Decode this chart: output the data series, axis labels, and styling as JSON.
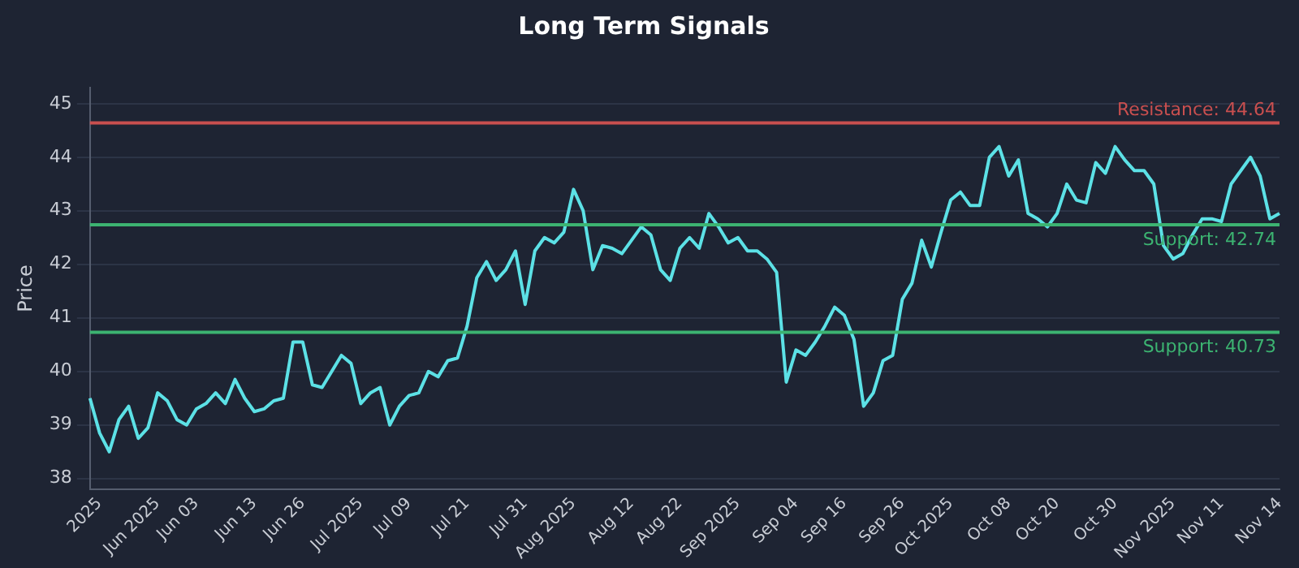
{
  "chart_data": {
    "type": "line",
    "title": "Long Term Signals",
    "ylabel": "Price",
    "categories": [
      null,
      "2025",
      null,
      null,
      null,
      null,
      null,
      "Jun 2025",
      null,
      null,
      null,
      "Jun 03",
      null,
      null,
      null,
      null,
      null,
      "Jun 13",
      null,
      null,
      null,
      null,
      "Jun 26",
      null,
      null,
      null,
      null,
      null,
      "Jul 2025",
      null,
      null,
      null,
      null,
      "Jul 09",
      null,
      null,
      null,
      null,
      null,
      "Jul 21",
      null,
      null,
      null,
      null,
      null,
      "Jul 31",
      null,
      null,
      null,
      null,
      "Aug 2025",
      null,
      null,
      null,
      null,
      null,
      "Aug 12",
      null,
      null,
      null,
      null,
      "Aug 22",
      null,
      null,
      null,
      null,
      null,
      "Sep 2025",
      null,
      null,
      null,
      null,
      null,
      "Sep 04",
      null,
      null,
      null,
      null,
      "Sep 16",
      null,
      null,
      null,
      null,
      null,
      "Sep 26",
      null,
      null,
      null,
      null,
      "Oct 2025",
      null,
      null,
      null,
      null,
      null,
      "Oct 08",
      null,
      null,
      null,
      null,
      "Oct 20",
      null,
      null,
      null,
      null,
      null,
      "Oct 30",
      null,
      null,
      null,
      null,
      null,
      "Nov 2025",
      null,
      null,
      null,
      null,
      "Nov 11",
      null,
      null,
      null,
      null,
      null,
      "Nov 14"
    ],
    "series": [
      {
        "color": "#5ce1e6",
        "values": [
          39.5,
          38.85,
          38.5,
          39.1,
          39.35,
          38.75,
          38.95,
          39.6,
          39.45,
          39.1,
          39.0,
          39.3,
          39.4,
          39.6,
          39.4,
          39.85,
          39.5,
          39.25,
          39.3,
          39.45,
          39.5,
          40.55,
          40.55,
          39.75,
          39.7,
          40.0,
          40.3,
          40.15,
          39.4,
          39.6,
          39.7,
          39.0,
          39.35,
          39.55,
          39.6,
          40.0,
          39.9,
          40.2,
          40.25,
          40.85,
          41.75,
          42.05,
          41.7,
          41.9,
          42.25,
          41.25,
          42.25,
          42.5,
          42.4,
          42.6,
          43.4,
          43.0,
          41.9,
          42.35,
          42.3,
          42.2,
          42.45,
          42.7,
          42.55,
          41.9,
          41.7,
          42.3,
          42.5,
          42.3,
          42.95,
          42.7,
          42.4,
          42.5,
          42.25,
          42.25,
          42.1,
          41.85,
          39.8,
          40.4,
          40.3,
          40.55,
          40.85,
          41.2,
          41.05,
          40.6,
          39.35,
          39.6,
          40.2,
          40.3,
          41.35,
          41.65,
          42.45,
          41.95,
          42.6,
          43.2,
          43.35,
          43.1,
          43.1,
          44.0,
          44.2,
          43.65,
          43.95,
          42.95,
          42.85,
          42.7,
          42.95,
          43.5,
          43.2,
          43.15,
          43.9,
          43.7,
          44.2,
          43.95,
          43.75,
          43.75,
          43.5,
          42.35,
          42.1,
          42.2,
          42.55,
          42.85,
          42.85,
          42.8,
          43.5,
          43.75,
          44.0,
          43.65,
          42.85,
          42.95
        ]
      }
    ],
    "ylim": [
      37.8,
      45.3
    ],
    "yticks": [
      38,
      39,
      40,
      41,
      42,
      43,
      44,
      45
    ],
    "grid": "y",
    "legend": false,
    "marker": "none",
    "line_style": "solid",
    "ref_lines": [
      {
        "axis": "y",
        "value": 44.64,
        "label": "Resistance: 44.64",
        "color": "#c94f4f"
      },
      {
        "axis": "y",
        "value": 42.74,
        "label": "Support: 42.74",
        "color": "#3cb371"
      },
      {
        "axis": "y",
        "value": 40.73,
        "label": "Support: 40.73",
        "color": "#3cb371"
      }
    ]
  }
}
